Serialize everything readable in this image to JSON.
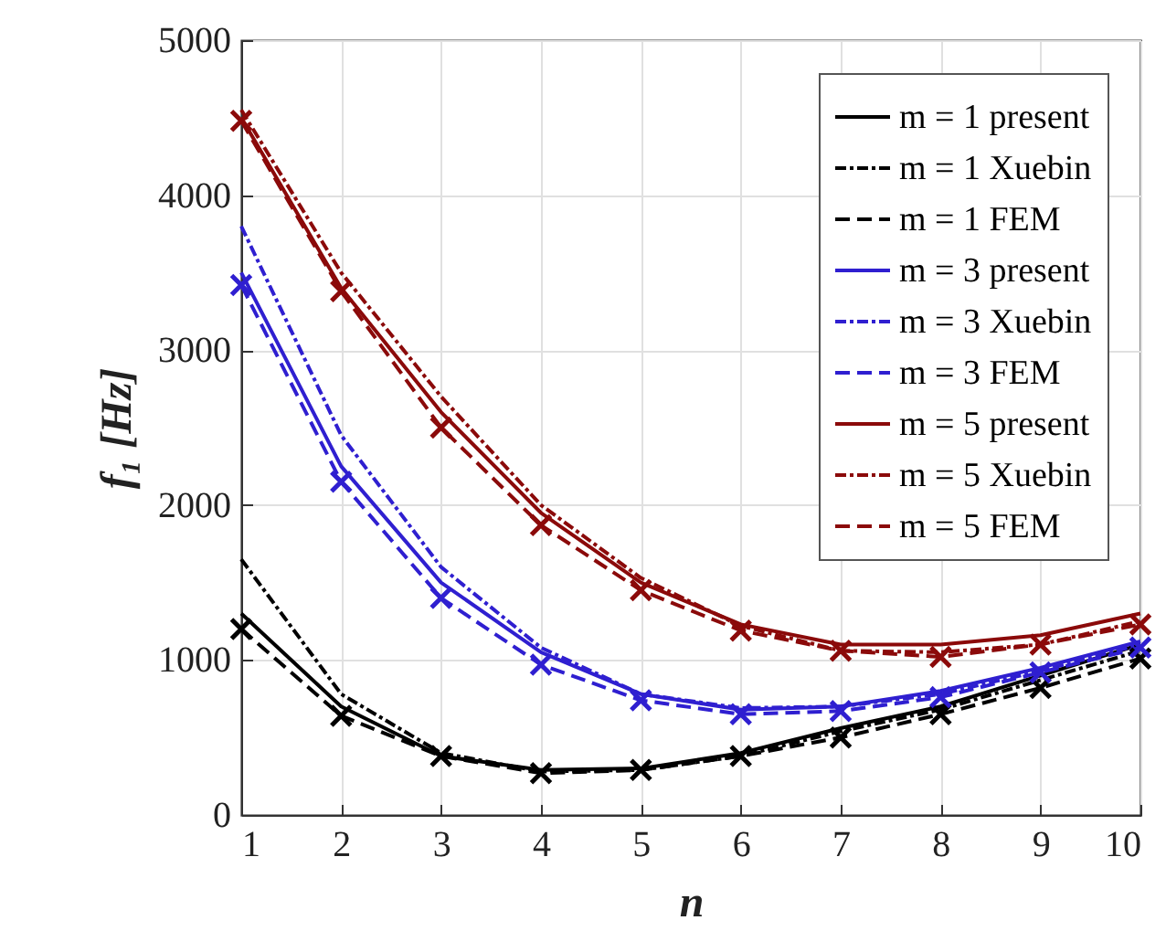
{
  "chart_data": {
    "type": "line",
    "xlabel": "n",
    "ylabel": "f₁ [Hz]",
    "x": [
      1,
      2,
      3,
      4,
      5,
      6,
      7,
      8,
      9,
      10
    ],
    "xlim": [
      1,
      10
    ],
    "xticks": [
      1,
      2,
      3,
      4,
      5,
      6,
      7,
      8,
      9,
      10
    ],
    "ylim": [
      0,
      5000
    ],
    "yticks": [
      0,
      1000,
      2000,
      3000,
      4000,
      5000
    ],
    "grid": true,
    "legend": "top right",
    "series": [
      {
        "name": "m = 1 present",
        "color": "#000000",
        "line_style": "solid",
        "marker": "none",
        "values": [
          1300,
          700,
          380,
          290,
          300,
          400,
          560,
          700,
          900,
          1100
        ]
      },
      {
        "name": "m = 1 Xuebin",
        "color": "#000000",
        "line_style": "dotted",
        "marker": "none",
        "values": [
          1650,
          780,
          400,
          280,
          290,
          380,
          540,
          680,
          870,
          1060
        ]
      },
      {
        "name": "m = 1 FEM",
        "color": "#000000",
        "line_style": "dashed",
        "marker": "cross",
        "values": [
          1200,
          640,
          380,
          270,
          290,
          380,
          500,
          650,
          820,
          1010
        ]
      },
      {
        "name": "m = 3 present",
        "color": "#2f1fd0",
        "line_style": "solid",
        "marker": "none",
        "values": [
          3500,
          2250,
          1500,
          1050,
          780,
          680,
          700,
          800,
          950,
          1120
        ]
      },
      {
        "name": "m = 3 Xuebin",
        "color": "#2f1fd0",
        "line_style": "dotted",
        "marker": "none",
        "values": [
          3800,
          2450,
          1600,
          1080,
          780,
          690,
          700,
          780,
          930,
          1100
        ]
      },
      {
        "name": "m = 3 FEM",
        "color": "#2f1fd0",
        "line_style": "dashed",
        "marker": "cross",
        "values": [
          3420,
          2150,
          1400,
          970,
          740,
          650,
          670,
          760,
          920,
          1080
        ]
      },
      {
        "name": "m = 5 present",
        "color": "#8b0a0a",
        "line_style": "solid",
        "marker": "none",
        "values": [
          4500,
          3400,
          2600,
          1950,
          1500,
          1230,
          1100,
          1100,
          1160,
          1300
        ]
      },
      {
        "name": "m = 5 Xuebin",
        "color": "#8b0a0a",
        "line_style": "dotted",
        "marker": "none",
        "values": [
          4550,
          3500,
          2700,
          2000,
          1530,
          1220,
          1060,
          1050,
          1100,
          1250
        ]
      },
      {
        "name": "m = 5 FEM",
        "color": "#8b0a0a",
        "line_style": "dashed",
        "marker": "cross",
        "values": [
          4480,
          3380,
          2500,
          1870,
          1450,
          1190,
          1060,
          1020,
          1100,
          1230
        ]
      }
    ]
  }
}
